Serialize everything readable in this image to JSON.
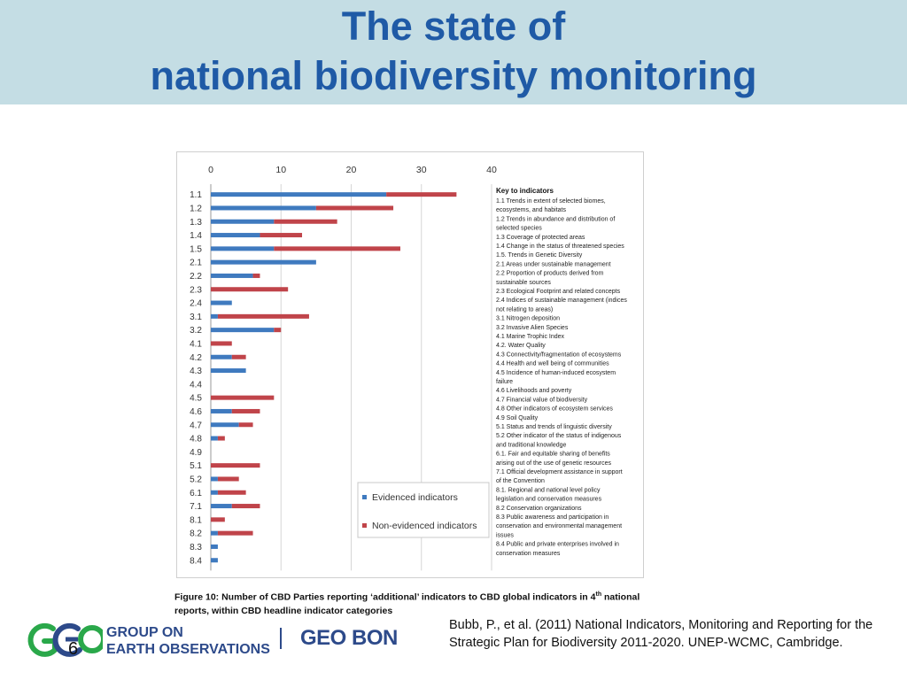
{
  "slide": {
    "title_lines": [
      "The state of",
      "national biodiversity monitoring"
    ],
    "caption_main": "Figure 10: Number of CBD Parties reporting ‘additional’ indicators to CBD global indicators in 4",
    "caption_sup": "th",
    "caption_tail": " national reports, within CBD headline indicator categories",
    "citation": "Bubb, P., et al. (2011) National Indicators, Monitoring and Reporting for the Strategic Plan for Biodiversity 2011-2020. UNEP-WCMC, Cambridge.",
    "slide_number": "6",
    "logo_geo_line1": "GROUP ON",
    "logo_geo_line2": "EARTH OBSERVATIONS",
    "logo_geobon": "GEO BON"
  },
  "colors": {
    "title": "#1f5aa6",
    "header_band": "#c4dde4",
    "evidenced": "#3f7abf",
    "non_evidenced": "#c0444a",
    "logo_green": "#2aa84a",
    "logo_blue": "#2d4a8a"
  },
  "chart_data": {
    "type": "bar",
    "orientation": "horizontal",
    "stacked": true,
    "categories": [
      "1.1",
      "1.2",
      "1.3",
      "1.4",
      "1.5",
      "2.1",
      "2.2",
      "2.3",
      "2.4",
      "3.1",
      "3.2",
      "4.1",
      "4.2",
      "4.3",
      "4.4",
      "4.5",
      "4.6",
      "4.7",
      "4.8",
      "4.9",
      "5.1",
      "5.2",
      "6.1",
      "7.1",
      "8.1",
      "8.2",
      "8.3",
      "8.4"
    ],
    "series": [
      {
        "name": "Evidenced indicators",
        "color": "#3f7abf",
        "values": [
          25,
          15,
          9,
          7,
          9,
          15,
          6,
          0,
          3,
          1,
          9,
          0,
          3,
          5,
          0,
          0,
          3,
          4,
          1,
          0,
          0,
          1,
          1,
          3,
          0,
          1,
          1,
          1
        ]
      },
      {
        "name": "Non-evidenced indicators",
        "color": "#c0444a",
        "values": [
          10,
          11,
          9,
          6,
          18,
          0,
          1,
          11,
          0,
          13,
          1,
          3,
          2,
          0,
          0,
          9,
          4,
          2,
          1,
          0,
          7,
          3,
          4,
          4,
          2,
          5,
          0,
          0
        ]
      }
    ],
    "xlim": [
      0,
      40
    ],
    "xticks": [
      "0",
      "10",
      "20",
      "30",
      "40"
    ],
    "xtick_values": [
      0,
      10,
      20,
      30,
      40
    ],
    "grid": "vertical",
    "legend_position": "bottom-right",
    "key_title": "Key to indicators",
    "key_lines": [
      "1.1 Trends in extent of selected biomes,",
      "ecosystems, and habitats",
      "1.2 Trends in abundance and distribution of",
      "selected species",
      "1.3 Coverage of protected areas",
      "1.4 Change in the status of threatened species",
      "1.5. Trends in Genetic Diversity",
      "2.1 Areas under sustainable management",
      "2.2 Proportion of products derived from",
      "sustainable sources",
      "2.3 Ecological Footprint and related concepts",
      "2.4 Indices of sustainable management (indices",
      "not relating to areas)",
      "3.1 Nitrogen deposition",
      "3.2 Invasive Alien Species",
      "4.1 Marine Trophic Index",
      "4.2. Water Quality",
      "4.3 Connectivity/fragmentation of ecosystems",
      "4.4 Health and well being of communities",
      "4.5 Incidence of human-induced ecosystem",
      "failure",
      "4.6 Livelihoods and poverty",
      "4.7 Financial value of biodiversity",
      "4.8 Other indicators of ecosystem services",
      "4.9 Soil Quality",
      "5.1 Status and trends of linguistic diversity",
      "5.2 Other indicator of the status of indigenous",
      "and traditional knowledge",
      "6.1. Fair and equitable sharing of benefits",
      "arising out of the use of genetic resources",
      "7.1 Official development assistance in support",
      "of the Convention",
      "8.1. Regional and national level policy",
      "legislation and conservation measures",
      "8.2 Conservation organizations",
      "8.3 Public awareness and participation in",
      "conservation and environmental management",
      "issues",
      "8.4 Public and private enterprises involved in",
      "conservation measures"
    ]
  }
}
